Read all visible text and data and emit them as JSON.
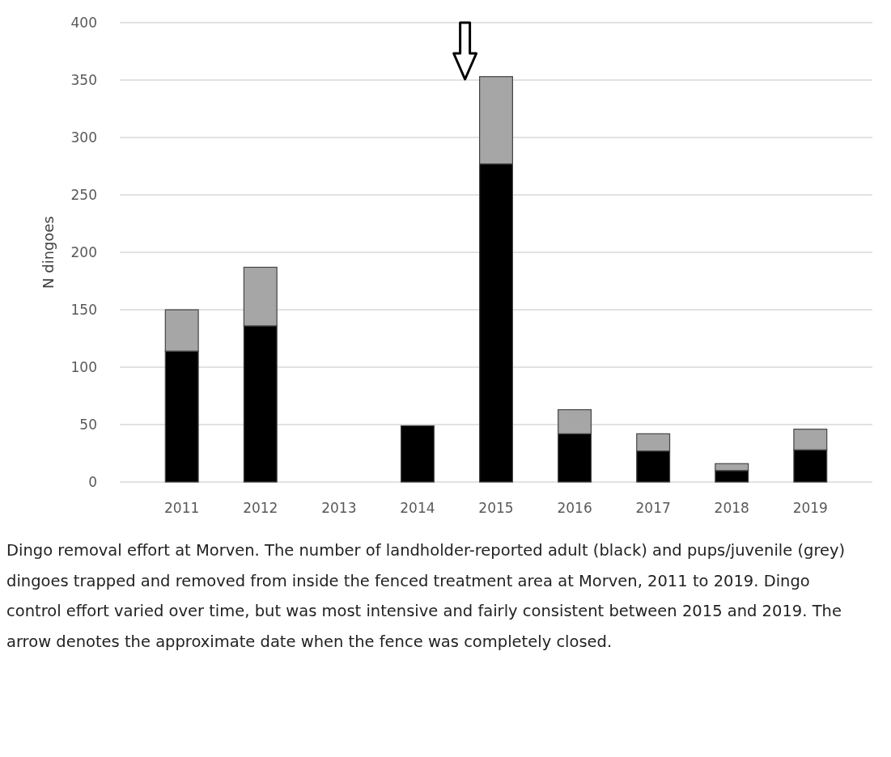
{
  "chart_data": {
    "type": "bar",
    "stacked": true,
    "ylabel": "N dingoes",
    "categories": [
      "2011",
      "2012",
      "2013",
      "2014",
      "2015",
      "2016",
      "2017",
      "2018",
      "2019"
    ],
    "series": [
      {
        "color": "#000000",
        "values": [
          114,
          136,
          null,
          49,
          277,
          42,
          27,
          10,
          28
        ]
      },
      {
        "color": "#a6a6a6",
        "values": [
          36,
          51,
          null,
          null,
          76,
          21,
          15,
          6,
          18
        ]
      }
    ],
    "ylim": [
      0,
      400
    ],
    "yticks": [
      0,
      50,
      100,
      150,
      200,
      250,
      300,
      350,
      400
    ],
    "grid": "y",
    "annotations": [
      "Dingo removal effort at Morven. The number of landholder-reported adult (black) and pups/juvenile (grey) dingoes trapped and removed from inside the fenced treatment area at Morven, 2011 to 2019. Dingo control effort varied over time, but was most intensive and fairly consistent between 2015 and 2019. The arrow denotes the approximate date when the fence was completely closed."
    ]
  }
}
